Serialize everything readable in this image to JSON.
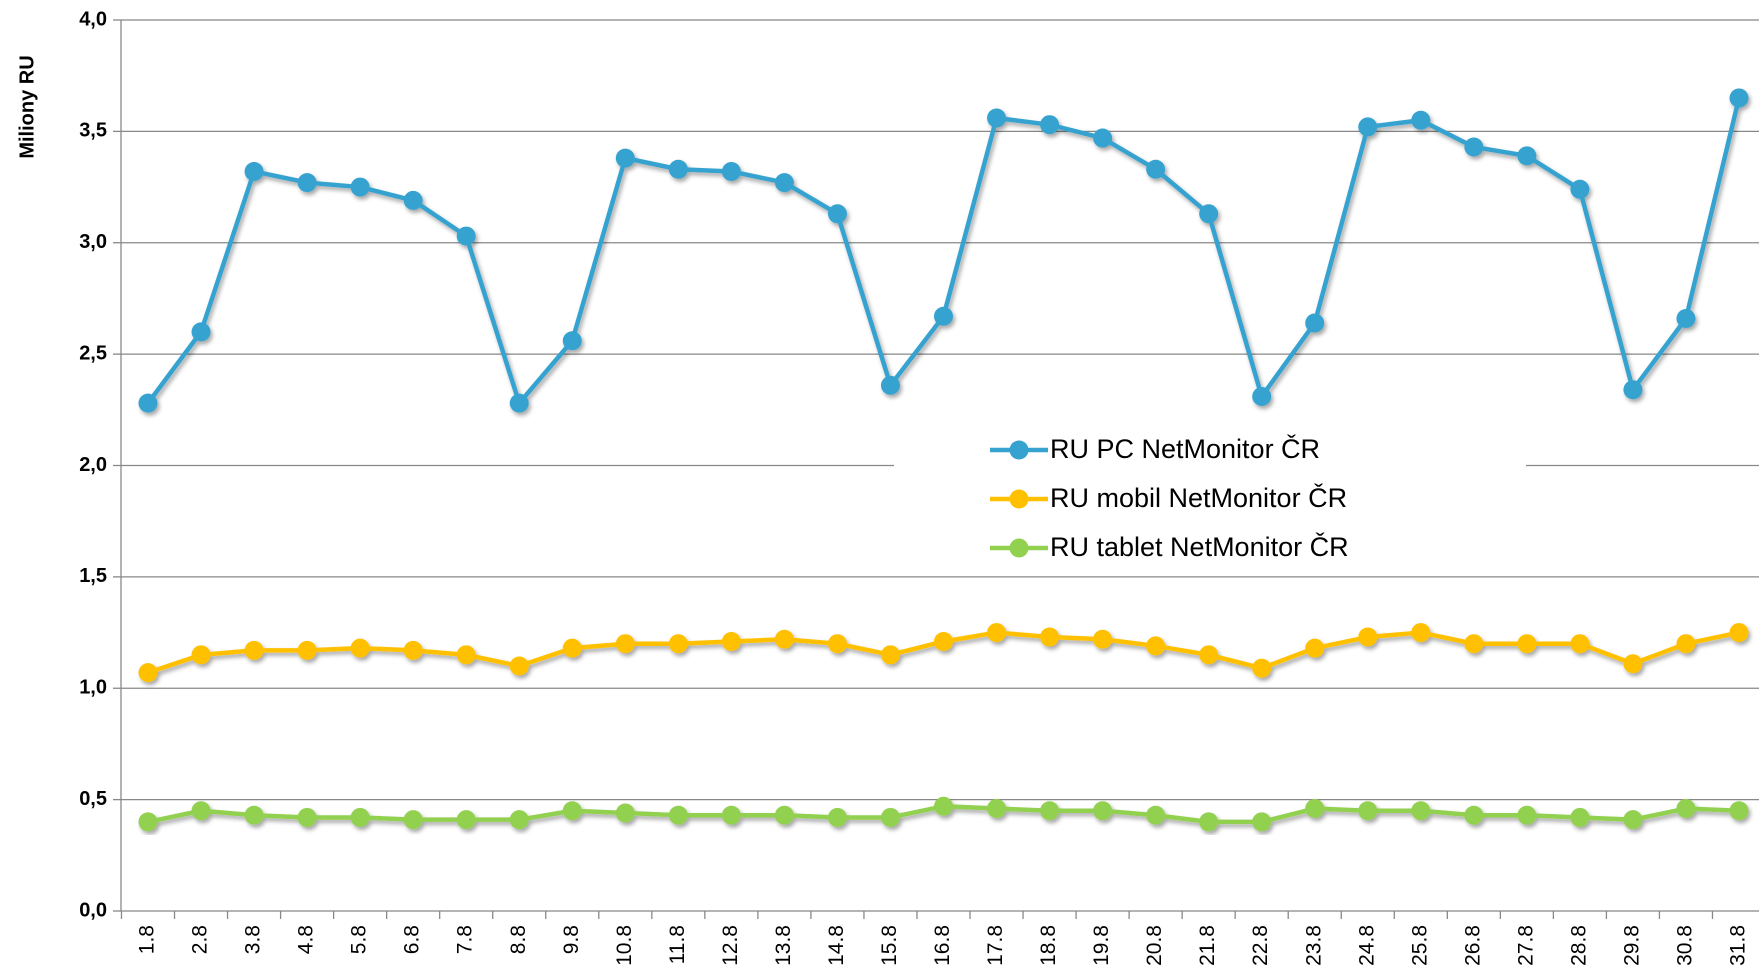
{
  "chart_data": {
    "type": "line",
    "ylabel": "Miliony RU",
    "categories": [
      "1.8",
      "2.8",
      "3.8",
      "4.8",
      "5.8",
      "6.8",
      "7.8",
      "8.8",
      "9.8",
      "10.8",
      "11.8",
      "12.8",
      "13.8",
      "14.8",
      "15.8",
      "16.8",
      "17.8",
      "18.8",
      "19.8",
      "20.8",
      "21.8",
      "22.8",
      "23.8",
      "24.8",
      "25.8",
      "26.8",
      "27.8",
      "28.8",
      "29.8",
      "30.8",
      "31.8"
    ],
    "series": [
      {
        "name": "RU PC NetMonitor ČR",
        "color": "#35a2d0",
        "values": [
          2.28,
          2.6,
          3.32,
          3.27,
          3.25,
          3.19,
          3.03,
          2.28,
          2.56,
          3.38,
          3.33,
          3.32,
          3.27,
          3.13,
          2.36,
          2.67,
          3.56,
          3.53,
          3.47,
          3.33,
          3.13,
          2.31,
          2.64,
          3.52,
          3.55,
          3.43,
          3.39,
          3.24,
          2.34,
          2.66,
          3.65
        ]
      },
      {
        "name": "RU mobil NetMonitor ČR",
        "color": "#ffc000",
        "values": [
          1.07,
          1.15,
          1.17,
          1.17,
          1.18,
          1.17,
          1.15,
          1.1,
          1.18,
          1.2,
          1.2,
          1.21,
          1.22,
          1.2,
          1.15,
          1.21,
          1.25,
          1.23,
          1.22,
          1.19,
          1.15,
          1.09,
          1.18,
          1.23,
          1.25,
          1.2,
          1.2,
          1.2,
          1.11,
          1.2,
          1.25
        ]
      },
      {
        "name": "RU tablet NetMonitor ČR",
        "color": "#92d050",
        "values": [
          0.4,
          0.45,
          0.43,
          0.42,
          0.42,
          0.41,
          0.41,
          0.41,
          0.45,
          0.44,
          0.43,
          0.43,
          0.43,
          0.42,
          0.42,
          0.47,
          0.46,
          0.45,
          0.45,
          0.43,
          0.4,
          0.4,
          0.46,
          0.45,
          0.45,
          0.43,
          0.43,
          0.42,
          0.41,
          0.46,
          0.45
        ]
      }
    ],
    "ylim": [
      0,
      4
    ],
    "yticks": [
      {
        "value": 0,
        "label": "0,0"
      },
      {
        "value": 0.5,
        "label": "0,5"
      },
      {
        "value": 1,
        "label": "1,0"
      },
      {
        "value": 1.5,
        "label": "1,5"
      },
      {
        "value": 2,
        "label": "2,0"
      },
      {
        "value": 2.5,
        "label": "2,5"
      },
      {
        "value": 3,
        "label": "3,0"
      },
      {
        "value": 3.5,
        "label": "3,5"
      },
      {
        "value": 4,
        "label": "4,0"
      }
    ],
    "grid": true
  }
}
